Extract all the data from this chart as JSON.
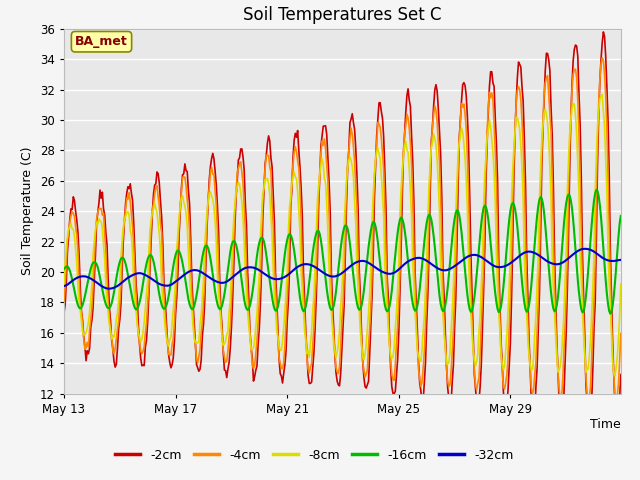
{
  "title": "Soil Temperatures Set C",
  "xlabel": "Time",
  "ylabel": "Soil Temperature (C)",
  "ylim": [
    12,
    36
  ],
  "yticks": [
    12,
    14,
    16,
    18,
    20,
    22,
    24,
    26,
    28,
    30,
    32,
    34,
    36
  ],
  "xtick_labels": [
    "May 13",
    "May 17",
    "May 21",
    "May 25",
    "May 29"
  ],
  "xtick_positions": [
    0,
    96,
    192,
    288,
    384
  ],
  "total_points": 480,
  "series_colors": [
    "#cc0000",
    "#ff8800",
    "#dddd00",
    "#00bb00",
    "#0000cc"
  ],
  "series_labels": [
    "-2cm",
    "-4cm",
    "-8cm",
    "-16cm",
    "-32cm"
  ],
  "line_width": 1.2,
  "plot_bg_color": "#e8e8e8",
  "fig_bg_color": "#f5f5f5",
  "annotation_text": "BA_met",
  "annotation_bg": "#ffffaa",
  "annotation_border": "#888800",
  "annotation_text_color": "#880000",
  "grid_color": "#ffffff",
  "grid_linewidth": 1.0,
  "title_fontsize": 12,
  "axis_label_fontsize": 9,
  "tick_fontsize": 8.5
}
